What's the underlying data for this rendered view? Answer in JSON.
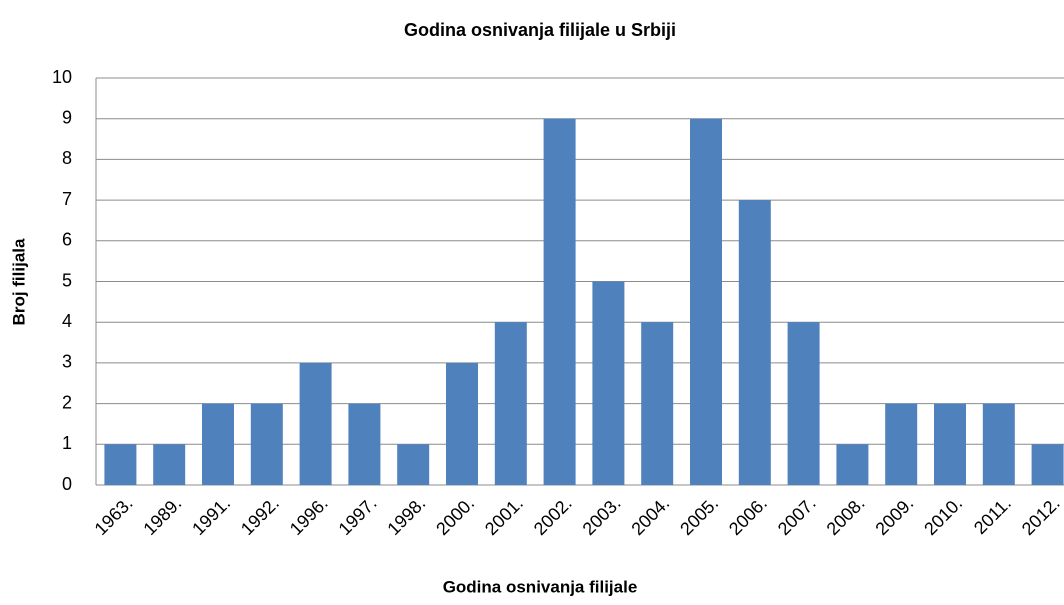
{
  "chart_data": {
    "type": "bar",
    "title": "Godina osnivanja filijale u Srbiji",
    "x_label": "Godina osnivanja filijale",
    "y_label": "Broj filijala",
    "categories": [
      "1963.",
      "1989.",
      "1991.",
      "1992.",
      "1996.",
      "1997.",
      "1998.",
      "2000.",
      "2001.",
      "2002.",
      "2003.",
      "2004.",
      "2005.",
      "2006.",
      "2007.",
      "2008.",
      "2009.",
      "2010.",
      "2011.",
      "2012."
    ],
    "values": [
      1,
      1,
      2,
      2,
      3,
      2,
      1,
      3,
      4,
      9,
      5,
      4,
      9,
      7,
      4,
      1,
      2,
      2,
      2,
      1
    ],
    "color": "#4f81bd",
    "ylim": [
      0,
      10
    ],
    "yticks": [
      0,
      1,
      2,
      3,
      4,
      5,
      6,
      7,
      8,
      9,
      10
    ],
    "grid": true
  }
}
